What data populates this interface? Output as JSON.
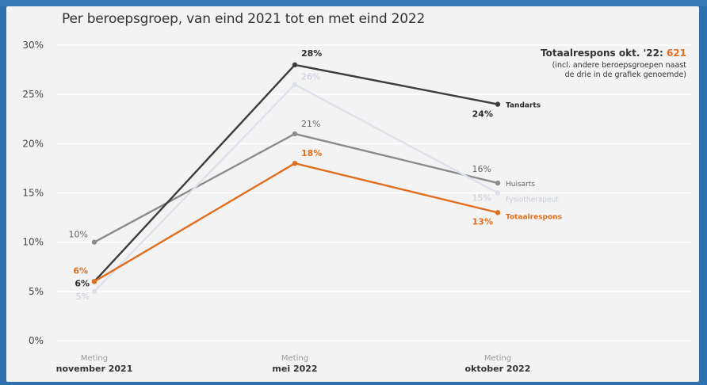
{
  "chart_data": {
    "type": "line",
    "title": "Per beroepsgroep, van eind 2021 tot en met eind 2022",
    "categories": [
      {
        "top": "Meting",
        "bottom": "november 2021"
      },
      {
        "top": "Meting",
        "bottom": "mei 2022"
      },
      {
        "top": "Meting",
        "bottom": "oktober 2022"
      }
    ],
    "ylim": [
      0,
      30
    ],
    "yticks": [
      "0%",
      "5%",
      "10%",
      "15%",
      "20%",
      "25%",
      "30%"
    ],
    "grid": true,
    "series": [
      {
        "name": "Huisarts",
        "values": [
          10,
          21,
          16
        ],
        "labels": [
          "10%",
          "21%",
          "16%"
        ],
        "color": "#8c8c8c"
      },
      {
        "name": "Fysiotherapeut",
        "values": [
          5,
          26,
          15
        ],
        "labels": [
          "5%",
          "26%",
          "15%"
        ],
        "color": "#dde1ea"
      },
      {
        "name": "Tandarts",
        "values": [
          6,
          28,
          24
        ],
        "labels": [
          "6%",
          "28%",
          "24%"
        ],
        "color": "#3c3c3c"
      },
      {
        "name": "Totaalrespons",
        "values": [
          6,
          18,
          13
        ],
        "labels": [
          "6%",
          "18%",
          "13%"
        ],
        "color": "#e07020"
      }
    ],
    "annotation": {
      "label": "Totaalrespons okt. '22:",
      "value": "621",
      "note_line1": "(incl. andere beroepsgroepen naast",
      "note_line2": "de drie in de grafiek genoemde)"
    }
  }
}
